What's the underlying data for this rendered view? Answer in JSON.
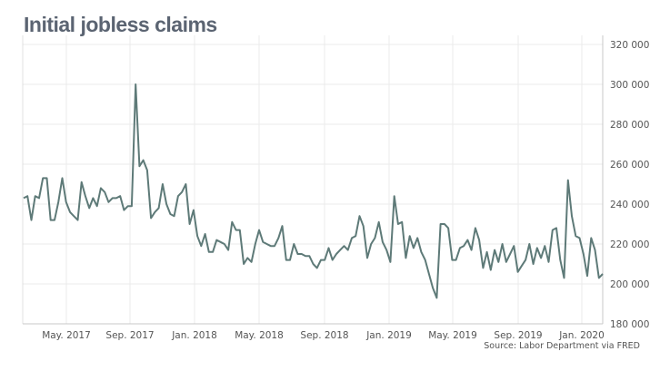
{
  "chart_data": {
    "type": "line",
    "title": "Initial jobless claims",
    "source": "Source: Labor Department via FRED",
    "xlabel": "",
    "ylabel": "",
    "ylim": [
      180000,
      320000
    ],
    "y_ticks": [
      "320 000",
      "300 000",
      "280 000",
      "260 000",
      "240 000",
      "220 000",
      "200 000",
      "180 000"
    ],
    "y_tick_values": [
      320000,
      300000,
      280000,
      260000,
      240000,
      220000,
      200000,
      180000
    ],
    "x_ticks": [
      "May. 2017",
      "Sep. 2017",
      "Jan. 2018",
      "May. 2018",
      "Sep. 2018",
      "Jan. 2019",
      "May. 2019",
      "Sep. 2019",
      "Jan. 2020"
    ],
    "grid": true,
    "frequency": "weekly",
    "series": [
      {
        "name": "Initial jobless claims",
        "color": "#5e7a78",
        "values": [
          243000,
          244000,
          232000,
          244000,
          243000,
          253000,
          253000,
          232000,
          232000,
          241000,
          253000,
          241000,
          236000,
          234000,
          232000,
          251000,
          244000,
          238000,
          243000,
          239000,
          248000,
          246000,
          241000,
          243000,
          243000,
          244000,
          237000,
          239000,
          239000,
          300000,
          259000,
          262000,
          257000,
          233000,
          236000,
          238000,
          250000,
          240000,
          235000,
          234000,
          244000,
          246000,
          250000,
          230000,
          237000,
          224000,
          219000,
          225000,
          216000,
          216000,
          222000,
          221000,
          220000,
          217000,
          231000,
          227000,
          227000,
          210000,
          213000,
          211000,
          220000,
          227000,
          221000,
          220000,
          219000,
          219000,
          223000,
          229000,
          212000,
          212000,
          220000,
          215000,
          215000,
          214000,
          214000,
          210000,
          208000,
          212000,
          212000,
          218000,
          212000,
          215000,
          217000,
          219000,
          217000,
          223000,
          224000,
          234000,
          229000,
          213000,
          220000,
          223000,
          231000,
          221000,
          217000,
          211000,
          244000,
          230000,
          231000,
          213000,
          224000,
          218000,
          223000,
          216000,
          212000,
          205000,
          198000,
          193000,
          230000,
          230000,
          228000,
          212000,
          212000,
          218000,
          219000,
          222000,
          217000,
          228000,
          222000,
          208000,
          216000,
          207000,
          217000,
          211000,
          220000,
          211000,
          215000,
          219000,
          206000,
          209000,
          212000,
          220000,
          210000,
          218000,
          213000,
          219000,
          211000,
          227000,
          228000,
          212000,
          203000,
          252000,
          234000,
          224000,
          223000,
          215000,
          204000,
          223000,
          217000,
          203000,
          205000
        ]
      }
    ]
  }
}
